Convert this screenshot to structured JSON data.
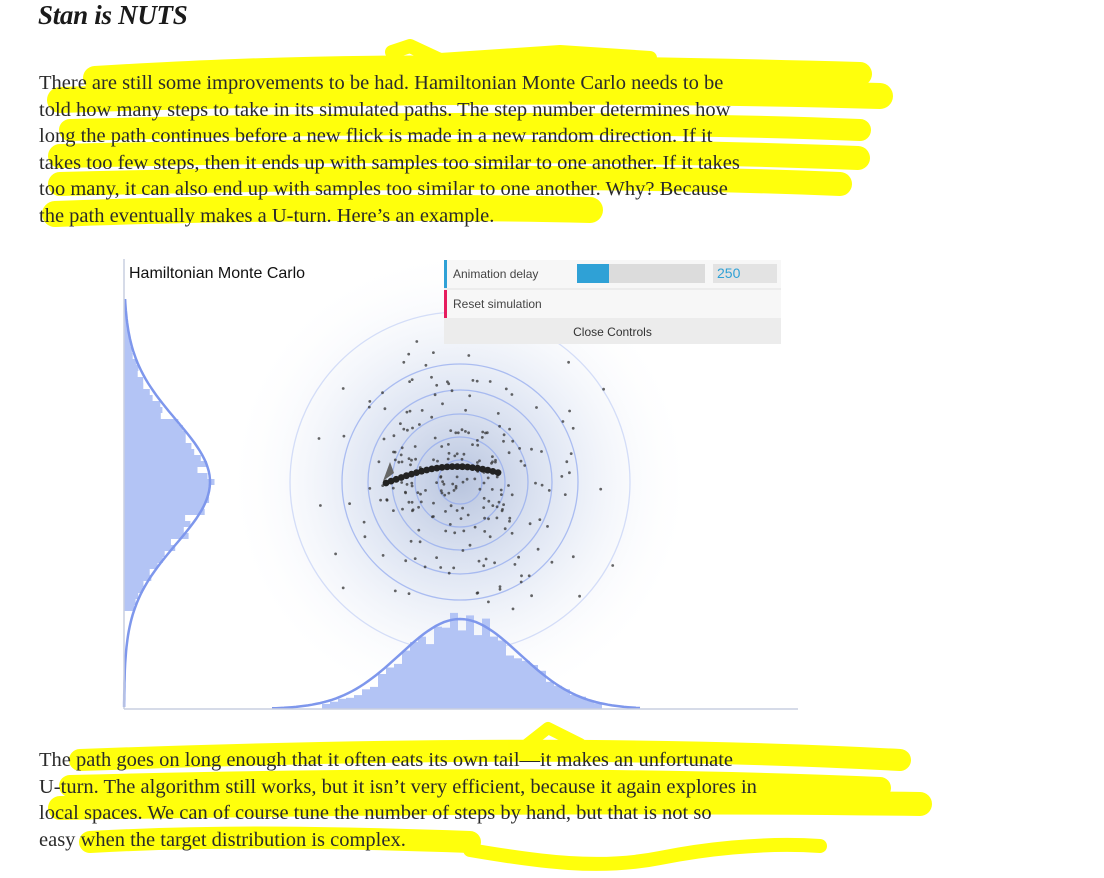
{
  "article": {
    "heading": "Stan is NUTS",
    "paragraph1": [
      "There are still some improvements to be had. Hamiltonian Monte Carlo needs to be",
      "told how many steps to take in its simulated paths. The step number determines how",
      "long the path continues before a new flick is made in a new random direction. If it",
      "takes too few steps, then it ends up with samples too similar to one another. If it takes",
      "too many, it can also end up with samples too similar to one another. Why? Because",
      "the path eventually makes a U-turn. Here’s an example."
    ],
    "paragraph2": [
      "The path goes on long enough that it often eats its own tail—it makes an unfortunate",
      "U-turn. The algorithm still works, but it isn’t very efficient, because it again explores in",
      "local spaces. We can of course tune the number of steps by hand, but that is not so",
      "easy when the target distribution is complex."
    ]
  },
  "figure": {
    "title": "Hamiltonian Monte Carlo"
  },
  "controls": {
    "animation_delay_label": "Animation delay",
    "animation_delay_value": "250",
    "animation_delay_fraction": 0.25,
    "reset_label": "Reset simulation",
    "close_label": "Close Controls"
  },
  "colors": {
    "highlight": "#ffff00",
    "histogram": "#b3c4f5",
    "density_curve": "#7e97ec",
    "contour": "#8ea6ee",
    "slider_accent": "#2fa1d6",
    "reset_accent": "#e61d5f"
  }
}
